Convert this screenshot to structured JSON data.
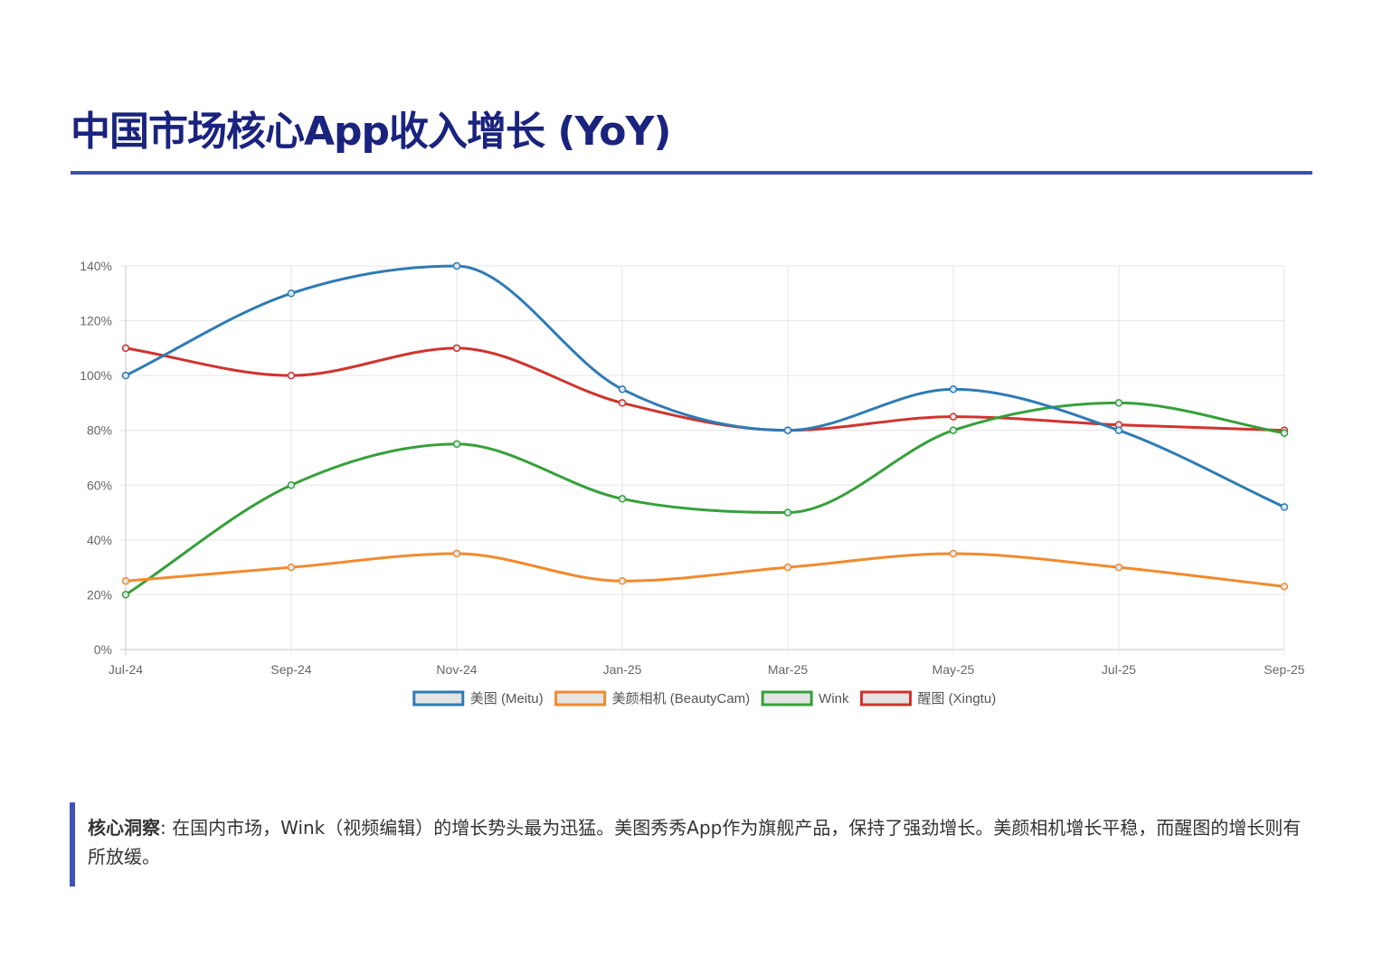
{
  "page": {
    "title": "中国市场核心App收入增长 (YoY)"
  },
  "insight": {
    "label": "核心洞察",
    "separator": ": ",
    "text": "在国内市场，Wink（视频编辑）的增长势头最为迅猛。美图秀秀App作为旗舰产品，保持了强劲增长。美颜相机增长平稳，而醒图的增长则有所放缓。"
  },
  "chart_data": {
    "type": "line",
    "title": "",
    "xlabel": "",
    "ylabel": "",
    "categories": [
      "Jul-24",
      "Sep-24",
      "Nov-24",
      "Jan-25",
      "Mar-25",
      "May-25",
      "Jul-25",
      "Sep-25"
    ],
    "y_ticks": [
      "0%",
      "20%",
      "40%",
      "60%",
      "80%",
      "100%",
      "120%",
      "140%"
    ],
    "ylim": [
      0,
      140
    ],
    "y_unit": "%",
    "grid": true,
    "smooth": true,
    "legend_position": "bottom",
    "series": [
      {
        "name": "美图 (Meitu)",
        "color": "#2e7bb4",
        "values": [
          100,
          130,
          140,
          95,
          80,
          95,
          80,
          52
        ]
      },
      {
        "name": "美颜相机 (BeautyCam)",
        "color": "#f28a2e",
        "values": [
          25,
          30,
          35,
          25,
          30,
          35,
          30,
          23
        ]
      },
      {
        "name": "Wink",
        "color": "#36a03a",
        "values": [
          20,
          60,
          75,
          55,
          50,
          80,
          90,
          79
        ]
      },
      {
        "name": "醒图 (Xingtu)",
        "color": "#d0332e",
        "values": [
          110,
          100,
          110,
          90,
          80,
          85,
          82,
          80
        ]
      }
    ]
  }
}
